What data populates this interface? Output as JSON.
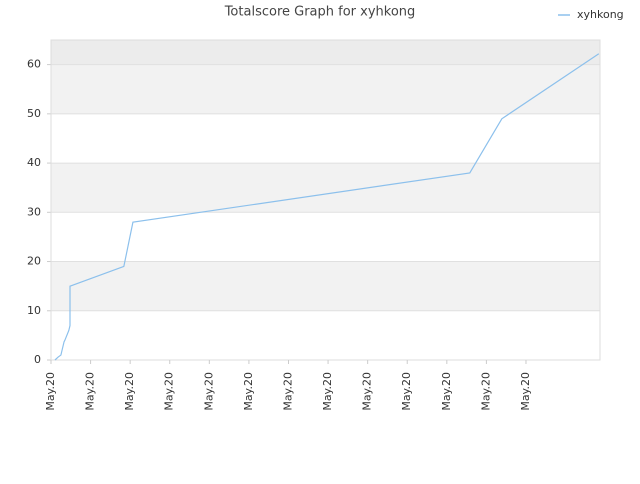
{
  "chart_data": {
    "type": "line",
    "title": "Totalscore Graph for xyhkong",
    "x": [
      0.1,
      0.18,
      0.25,
      0.33,
      0.35,
      0.45,
      0.48,
      0.48,
      1.84,
      2.07,
      10.58,
      11.39,
      13.84
    ],
    "series": [
      {
        "name": "xyhkong",
        "color": "#8cc0ec",
        "values": [
          0,
          0.6,
          1,
          3.7,
          4,
          6,
          7,
          15,
          19,
          28,
          38,
          49,
          62.2
        ]
      }
    ],
    "xlim": [
      0,
      13.87
    ],
    "xticks": [
      {
        "value": 0,
        "label": "May.20"
      },
      {
        "value": 1,
        "label": "May.20"
      },
      {
        "value": 2,
        "label": "May.20"
      },
      {
        "value": 3,
        "label": "May.20"
      },
      {
        "value": 4,
        "label": "May.20"
      },
      {
        "value": 5,
        "label": "May.20"
      },
      {
        "value": 6,
        "label": "May.20"
      },
      {
        "value": 7,
        "label": "May.20"
      },
      {
        "value": 8,
        "label": "May.20"
      },
      {
        "value": 9,
        "label": "May.20"
      },
      {
        "value": 10,
        "label": "May.20"
      },
      {
        "value": 11,
        "label": "May.20"
      },
      {
        "value": 12,
        "label": "May.20"
      }
    ],
    "ylim": [
      0,
      65
    ],
    "yticks": [
      0,
      10,
      20,
      30,
      40,
      50,
      60
    ],
    "grid": true,
    "legend": "top-right"
  }
}
